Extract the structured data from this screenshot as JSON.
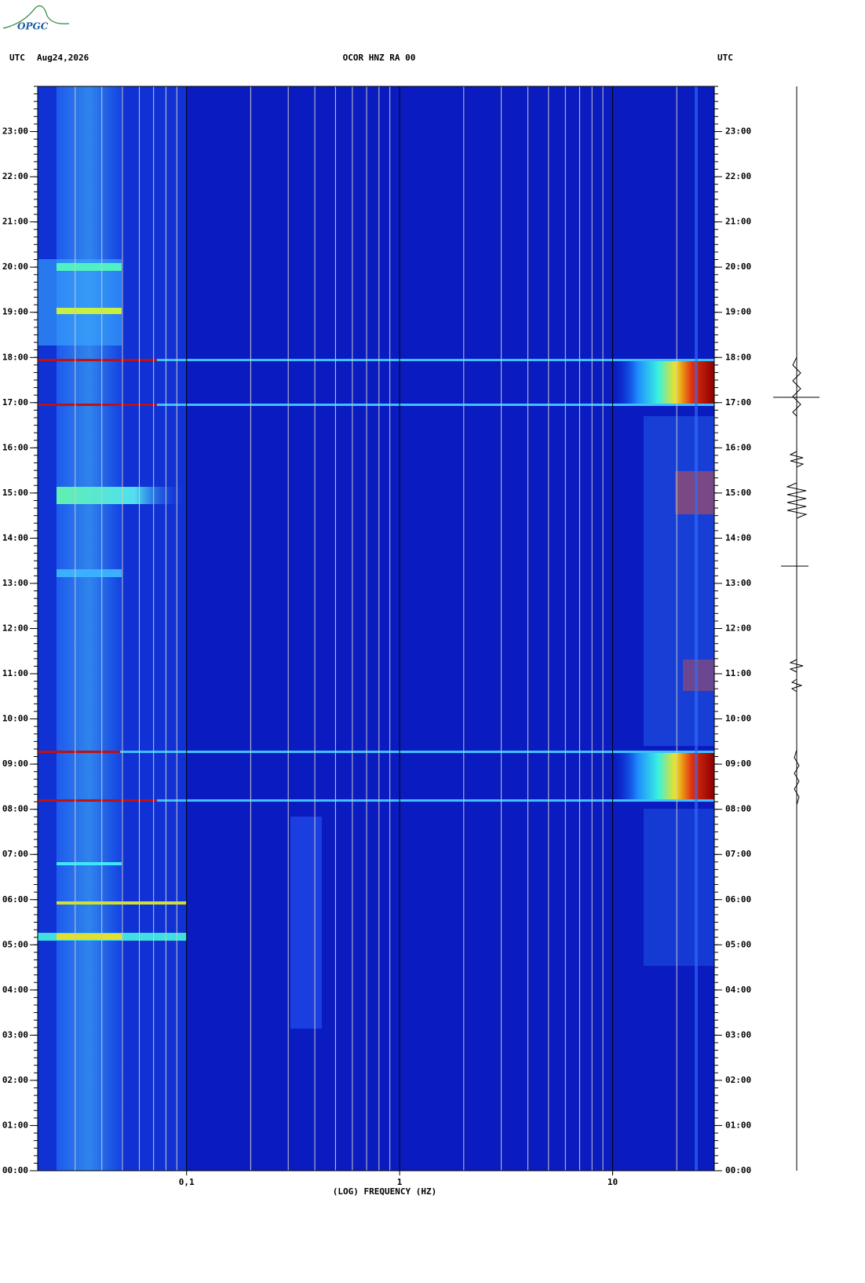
{
  "chart_data": {
    "type": "spectrogram",
    "logo": "OPGC",
    "header_left": "UTC",
    "date": "Aug24,2026",
    "title": "OCOR HNZ RA 00",
    "header_right": "UTC",
    "xlabel": "(LOG) FREQUENCY (HZ)",
    "xscale": "log",
    "xlim": [
      0.02,
      30
    ],
    "xticks": [
      {
        "value": 0.1,
        "label": "0,1"
      },
      1,
      10
    ],
    "minor_xticks": [
      0.03,
      0.04,
      0.05,
      0.06,
      0.07,
      0.08,
      0.09,
      0.2,
      0.3,
      0.4,
      0.5,
      0.6,
      0.7,
      0.8,
      0.9,
      2,
      3,
      4,
      5,
      6,
      7,
      8,
      9,
      20
    ],
    "ylim": [
      0,
      24
    ],
    "yticks": [
      {
        "value": 0,
        "label": "00:00"
      },
      {
        "value": 1,
        "label": "01:00"
      },
      {
        "value": 2,
        "label": "02:00"
      },
      {
        "value": 3,
        "label": "03:00"
      },
      {
        "value": 4,
        "label": "04:00"
      },
      {
        "value": 5,
        "label": "05:00"
      },
      {
        "value": 6,
        "label": "06:00"
      },
      {
        "value": 7,
        "label": "07:00"
      },
      {
        "value": 8,
        "label": "08:00"
      },
      {
        "value": 9,
        "label": "09:00"
      },
      {
        "value": 10,
        "label": "10:00"
      },
      {
        "value": 11,
        "label": "11:00"
      },
      {
        "value": 12,
        "label": "12:00"
      },
      {
        "value": 13,
        "label": "13:00"
      },
      {
        "value": 14,
        "label": "14:00"
      },
      {
        "value": 15,
        "label": "15:00"
      },
      {
        "value": 16,
        "label": "16:00"
      },
      {
        "value": 17,
        "label": "17:00"
      },
      {
        "value": 18,
        "label": "18:00"
      },
      {
        "value": 19,
        "label": "19:00"
      },
      {
        "value": 20,
        "label": "20:00"
      },
      {
        "value": 21,
        "label": "21:00"
      },
      {
        "value": 22,
        "label": "22:00"
      },
      {
        "value": 23,
        "label": "23:00"
      }
    ]
  }
}
